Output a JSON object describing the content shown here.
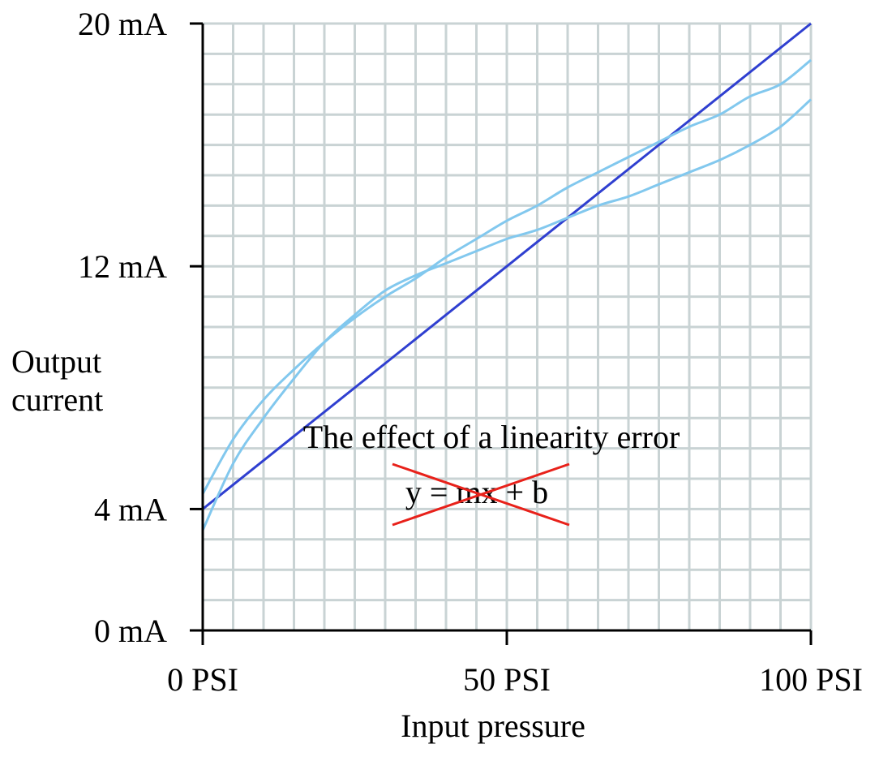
{
  "chart_data": {
    "type": "line",
    "xlabel": "Input pressure",
    "ylabel_lines": [
      "Output",
      "current"
    ],
    "x_ticks": [
      {
        "value": 0,
        "label": "0 PSI"
      },
      {
        "value": 50,
        "label": "50 PSI"
      },
      {
        "value": 100,
        "label": "100 PSI"
      }
    ],
    "y_ticks": [
      {
        "value": 0,
        "label": "0 mA"
      },
      {
        "value": 4,
        "label": "4 mA"
      },
      {
        "value": 12,
        "label": "12 mA"
      },
      {
        "value": 20,
        "label": "20 mA"
      }
    ],
    "xlim": [
      0,
      100
    ],
    "ylim": [
      0,
      20
    ],
    "grid": true,
    "annotation": {
      "caption": "The effect of a linearity error",
      "equation": "y = mx + b",
      "equation_struck_through": true,
      "strike_color": "#e8211a"
    },
    "series": [
      {
        "color": "#2f3fd0",
        "x": [
          0,
          100
        ],
        "y": [
          4,
          20
        ]
      },
      {
        "color": "#82c8ee",
        "x": [
          0,
          5,
          10,
          15,
          20,
          25,
          30,
          35,
          40,
          45,
          50,
          55,
          60,
          65,
          70,
          75,
          80,
          85,
          90,
          95,
          100
        ],
        "y": [
          4.5,
          6.3,
          7.6,
          8.6,
          9.5,
          10.3,
          11.0,
          11.6,
          12.3,
          12.9,
          13.5,
          14.0,
          14.6,
          15.1,
          15.6,
          16.1,
          16.6,
          17.0,
          17.6,
          18.0,
          18.8
        ]
      },
      {
        "color": "#82c8ee",
        "x": [
          0,
          5,
          10,
          15,
          20,
          25,
          30,
          35,
          40,
          45,
          50,
          55,
          60,
          65,
          70,
          75,
          80,
          85,
          90,
          95,
          100
        ],
        "y": [
          3.3,
          5.5,
          7.0,
          8.3,
          9.5,
          10.4,
          11.2,
          11.7,
          12.1,
          12.5,
          12.9,
          13.2,
          13.6,
          14.0,
          14.3,
          14.7,
          15.1,
          15.5,
          16.0,
          16.6,
          17.5
        ]
      }
    ],
    "colors": {
      "grid": "#c9d3d4",
      "axis": "#000000"
    }
  }
}
